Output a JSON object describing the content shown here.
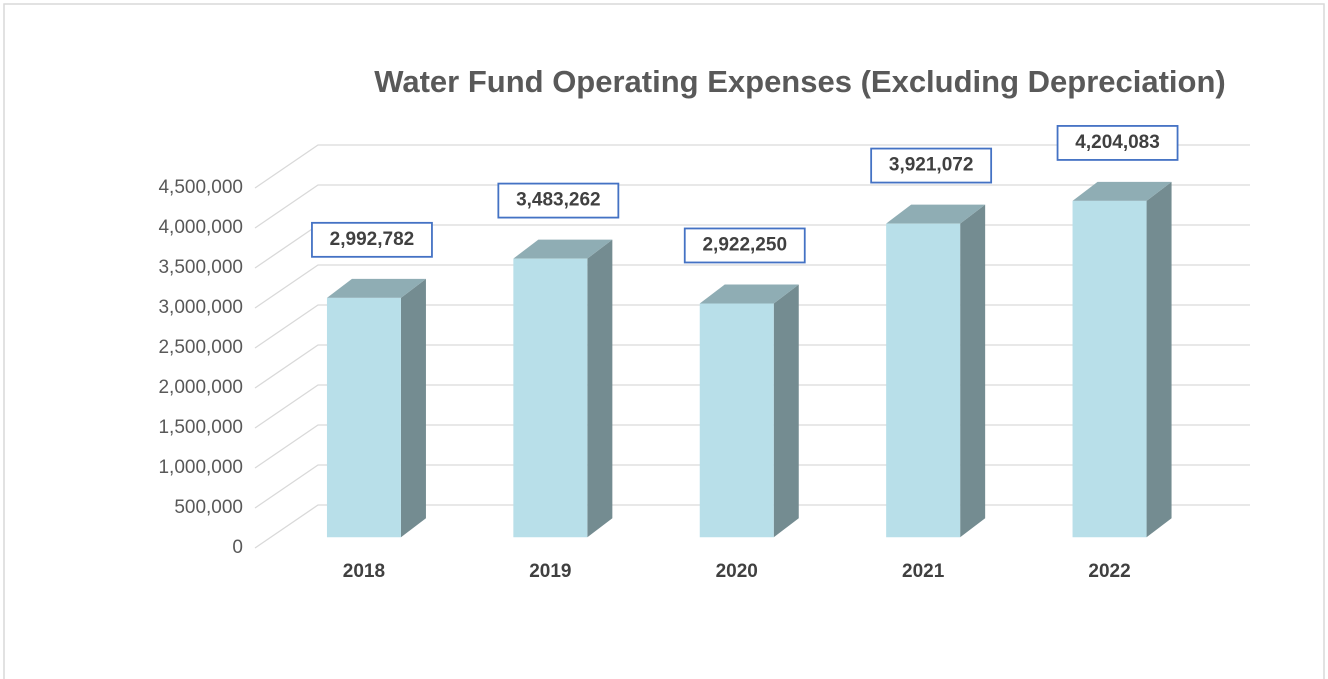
{
  "chart_data": {
    "type": "bar3d",
    "title": "Water Fund Operating Expenses (Excluding Depreciation)",
    "categories": [
      "2018",
      "2019",
      "2020",
      "2021",
      "2022"
    ],
    "values": [
      2992782,
      3483262,
      2922250,
      3921072,
      4204083
    ],
    "value_labels": [
      "2,992,782",
      "3,483,262",
      "2,922,250",
      "3,921,072",
      "4,204,083"
    ],
    "color": "#b8dfe9",
    "ylim": [
      0,
      4500000
    ],
    "yticks": [
      0,
      {
        "value": 500000,
        "label": "500,000"
      },
      {
        "value": 1000000,
        "label": "1,000,000"
      },
      {
        "value": 1500000,
        "label": "1,500,000"
      },
      {
        "value": 2000000,
        "label": "2,000,000"
      },
      {
        "value": 2500000,
        "label": "2,500,000"
      },
      {
        "value": 3000000,
        "label": "3,000,000"
      },
      {
        "value": 3500000,
        "label": "3,500,000"
      },
      {
        "value": 4000000,
        "label": "4,000,000"
      },
      {
        "value": 4500000,
        "label": "4,500,000"
      }
    ],
    "grid": true
  }
}
